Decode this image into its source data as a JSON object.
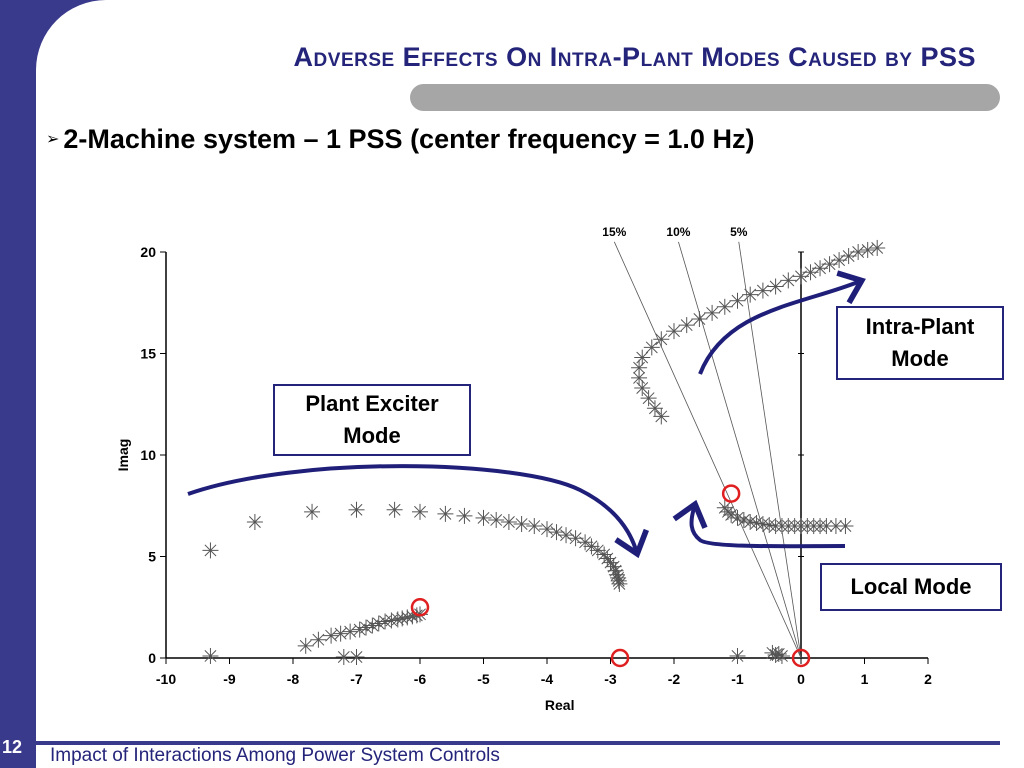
{
  "slide": {
    "title": "Adverse Effects On Intra-Plant Modes Caused by PSS",
    "bullet": "2-Machine system –  1 PSS (center frequency = 1.0 Hz)",
    "page_number": "12",
    "footer": "Impact of Interactions Among Power System Controls"
  },
  "annotations": {
    "plant_exciter": "Plant Exciter Mode",
    "intra_plant": "Intra-Plant Mode",
    "local": "Local Mode"
  },
  "chart_data": {
    "type": "scatter",
    "xlabel": "Real",
    "ylabel": "Imag",
    "xlim": [
      -10,
      2
    ],
    "ylim": [
      0,
      20
    ],
    "xticks": [
      "-10",
      "-9",
      "-8",
      "-7",
      "-6",
      "-5",
      "-4",
      "-3",
      "-2",
      "-1",
      "0",
      "1",
      "2"
    ],
    "yticks": [
      "0",
      "5",
      "10",
      "15",
      "20"
    ],
    "grid": false,
    "damping_lines": [
      {
        "label": "15%",
        "top": [
          -2.94,
          20.5
        ]
      },
      {
        "label": "10%",
        "top": [
          -1.93,
          20.5
        ]
      },
      {
        "label": "5%",
        "top": [
          -0.98,
          20.5
        ]
      }
    ],
    "series": [
      {
        "points": [
          [
            -9.3,
            5.3
          ],
          [
            -8.6,
            6.7
          ],
          [
            -7.7,
            7.2
          ],
          [
            -7.0,
            7.3
          ],
          [
            -6.4,
            7.3
          ],
          [
            -6.0,
            7.2
          ],
          [
            -5.6,
            7.1
          ],
          [
            -5.3,
            7.0
          ],
          [
            -5.0,
            6.9
          ],
          [
            -4.8,
            6.8
          ],
          [
            -4.6,
            6.7
          ],
          [
            -4.4,
            6.6
          ],
          [
            -4.2,
            6.5
          ],
          [
            -4.0,
            6.35
          ],
          [
            -3.85,
            6.2
          ],
          [
            -3.7,
            6.05
          ],
          [
            -3.55,
            5.9
          ],
          [
            -3.4,
            5.7
          ],
          [
            -3.3,
            5.5
          ],
          [
            -3.2,
            5.3
          ],
          [
            -3.1,
            5.1
          ],
          [
            -3.05,
            4.9
          ],
          [
            -3.0,
            4.7
          ],
          [
            -2.95,
            4.5
          ],
          [
            -2.92,
            4.3
          ],
          [
            -2.9,
            4.1
          ],
          [
            -2.88,
            3.95
          ],
          [
            -2.87,
            3.8
          ],
          [
            -2.86,
            3.65
          ]
        ]
      },
      {
        "points": [
          [
            -7.8,
            0.6
          ],
          [
            -7.6,
            0.9
          ],
          [
            -7.4,
            1.1
          ],
          [
            -7.25,
            1.2
          ],
          [
            -7.1,
            1.3
          ],
          [
            -6.95,
            1.4
          ],
          [
            -6.85,
            1.5
          ],
          [
            -6.75,
            1.6
          ],
          [
            -6.65,
            1.7
          ],
          [
            -6.55,
            1.8
          ],
          [
            -6.45,
            1.85
          ],
          [
            -6.35,
            1.9
          ],
          [
            -6.28,
            1.95
          ],
          [
            -6.2,
            2.0
          ],
          [
            -6.12,
            2.05
          ],
          [
            -6.05,
            2.1
          ],
          [
            -6.0,
            2.15
          ],
          [
            -9.3,
            0.1
          ],
          [
            -7.2,
            0.05
          ],
          [
            -7.0,
            0.05
          ]
        ]
      },
      {
        "points": [
          [
            -2.2,
            11.9
          ],
          [
            -2.3,
            12.3
          ],
          [
            -2.4,
            12.8
          ],
          [
            -2.5,
            13.3
          ],
          [
            -2.55,
            13.8
          ],
          [
            -2.55,
            14.3
          ],
          [
            -2.5,
            14.8
          ],
          [
            -2.35,
            15.3
          ],
          [
            -2.2,
            15.7
          ],
          [
            -2.0,
            16.1
          ],
          [
            -1.8,
            16.4
          ],
          [
            -1.6,
            16.7
          ],
          [
            -1.4,
            17.0
          ],
          [
            -1.2,
            17.3
          ],
          [
            -1.0,
            17.6
          ],
          [
            -0.8,
            17.9
          ],
          [
            -0.6,
            18.1
          ],
          [
            -0.4,
            18.3
          ],
          [
            -0.2,
            18.6
          ],
          [
            0.0,
            18.8
          ],
          [
            0.15,
            19.0
          ],
          [
            0.3,
            19.2
          ],
          [
            0.45,
            19.4
          ],
          [
            0.6,
            19.6
          ],
          [
            0.75,
            19.8
          ],
          [
            0.9,
            20.0
          ],
          [
            1.05,
            20.1
          ],
          [
            1.2,
            20.2
          ]
        ]
      },
      {
        "points": [
          [
            -1.2,
            7.4
          ],
          [
            -1.15,
            7.2
          ],
          [
            -1.1,
            7.05
          ],
          [
            -1.0,
            6.9
          ],
          [
            -0.9,
            6.8
          ],
          [
            -0.8,
            6.7
          ],
          [
            -0.7,
            6.65
          ],
          [
            -0.6,
            6.6
          ],
          [
            -0.5,
            6.55
          ],
          [
            -0.4,
            6.5
          ],
          [
            -0.3,
            6.5
          ],
          [
            -0.2,
            6.5
          ],
          [
            -0.1,
            6.5
          ],
          [
            0.0,
            6.5
          ],
          [
            0.1,
            6.5
          ],
          [
            0.2,
            6.5
          ],
          [
            0.3,
            6.5
          ],
          [
            0.4,
            6.5
          ],
          [
            0.55,
            6.5
          ],
          [
            0.7,
            6.5
          ],
          [
            -1.0,
            0.1
          ],
          [
            -0.45,
            0.25
          ],
          [
            -0.4,
            0.15
          ],
          [
            -0.35,
            0.2
          ],
          [
            -0.3,
            0.1
          ]
        ]
      }
    ],
    "circles": [
      [
        -6.0,
        2.5
      ],
      [
        -2.85,
        0.0
      ],
      [
        -1.1,
        8.1
      ],
      [
        0.0,
        0.0
      ]
    ],
    "colors": {
      "axes": "#000000",
      "markers": "#555555",
      "arrows": "#1f1f7a",
      "circles": "#e02020"
    }
  }
}
